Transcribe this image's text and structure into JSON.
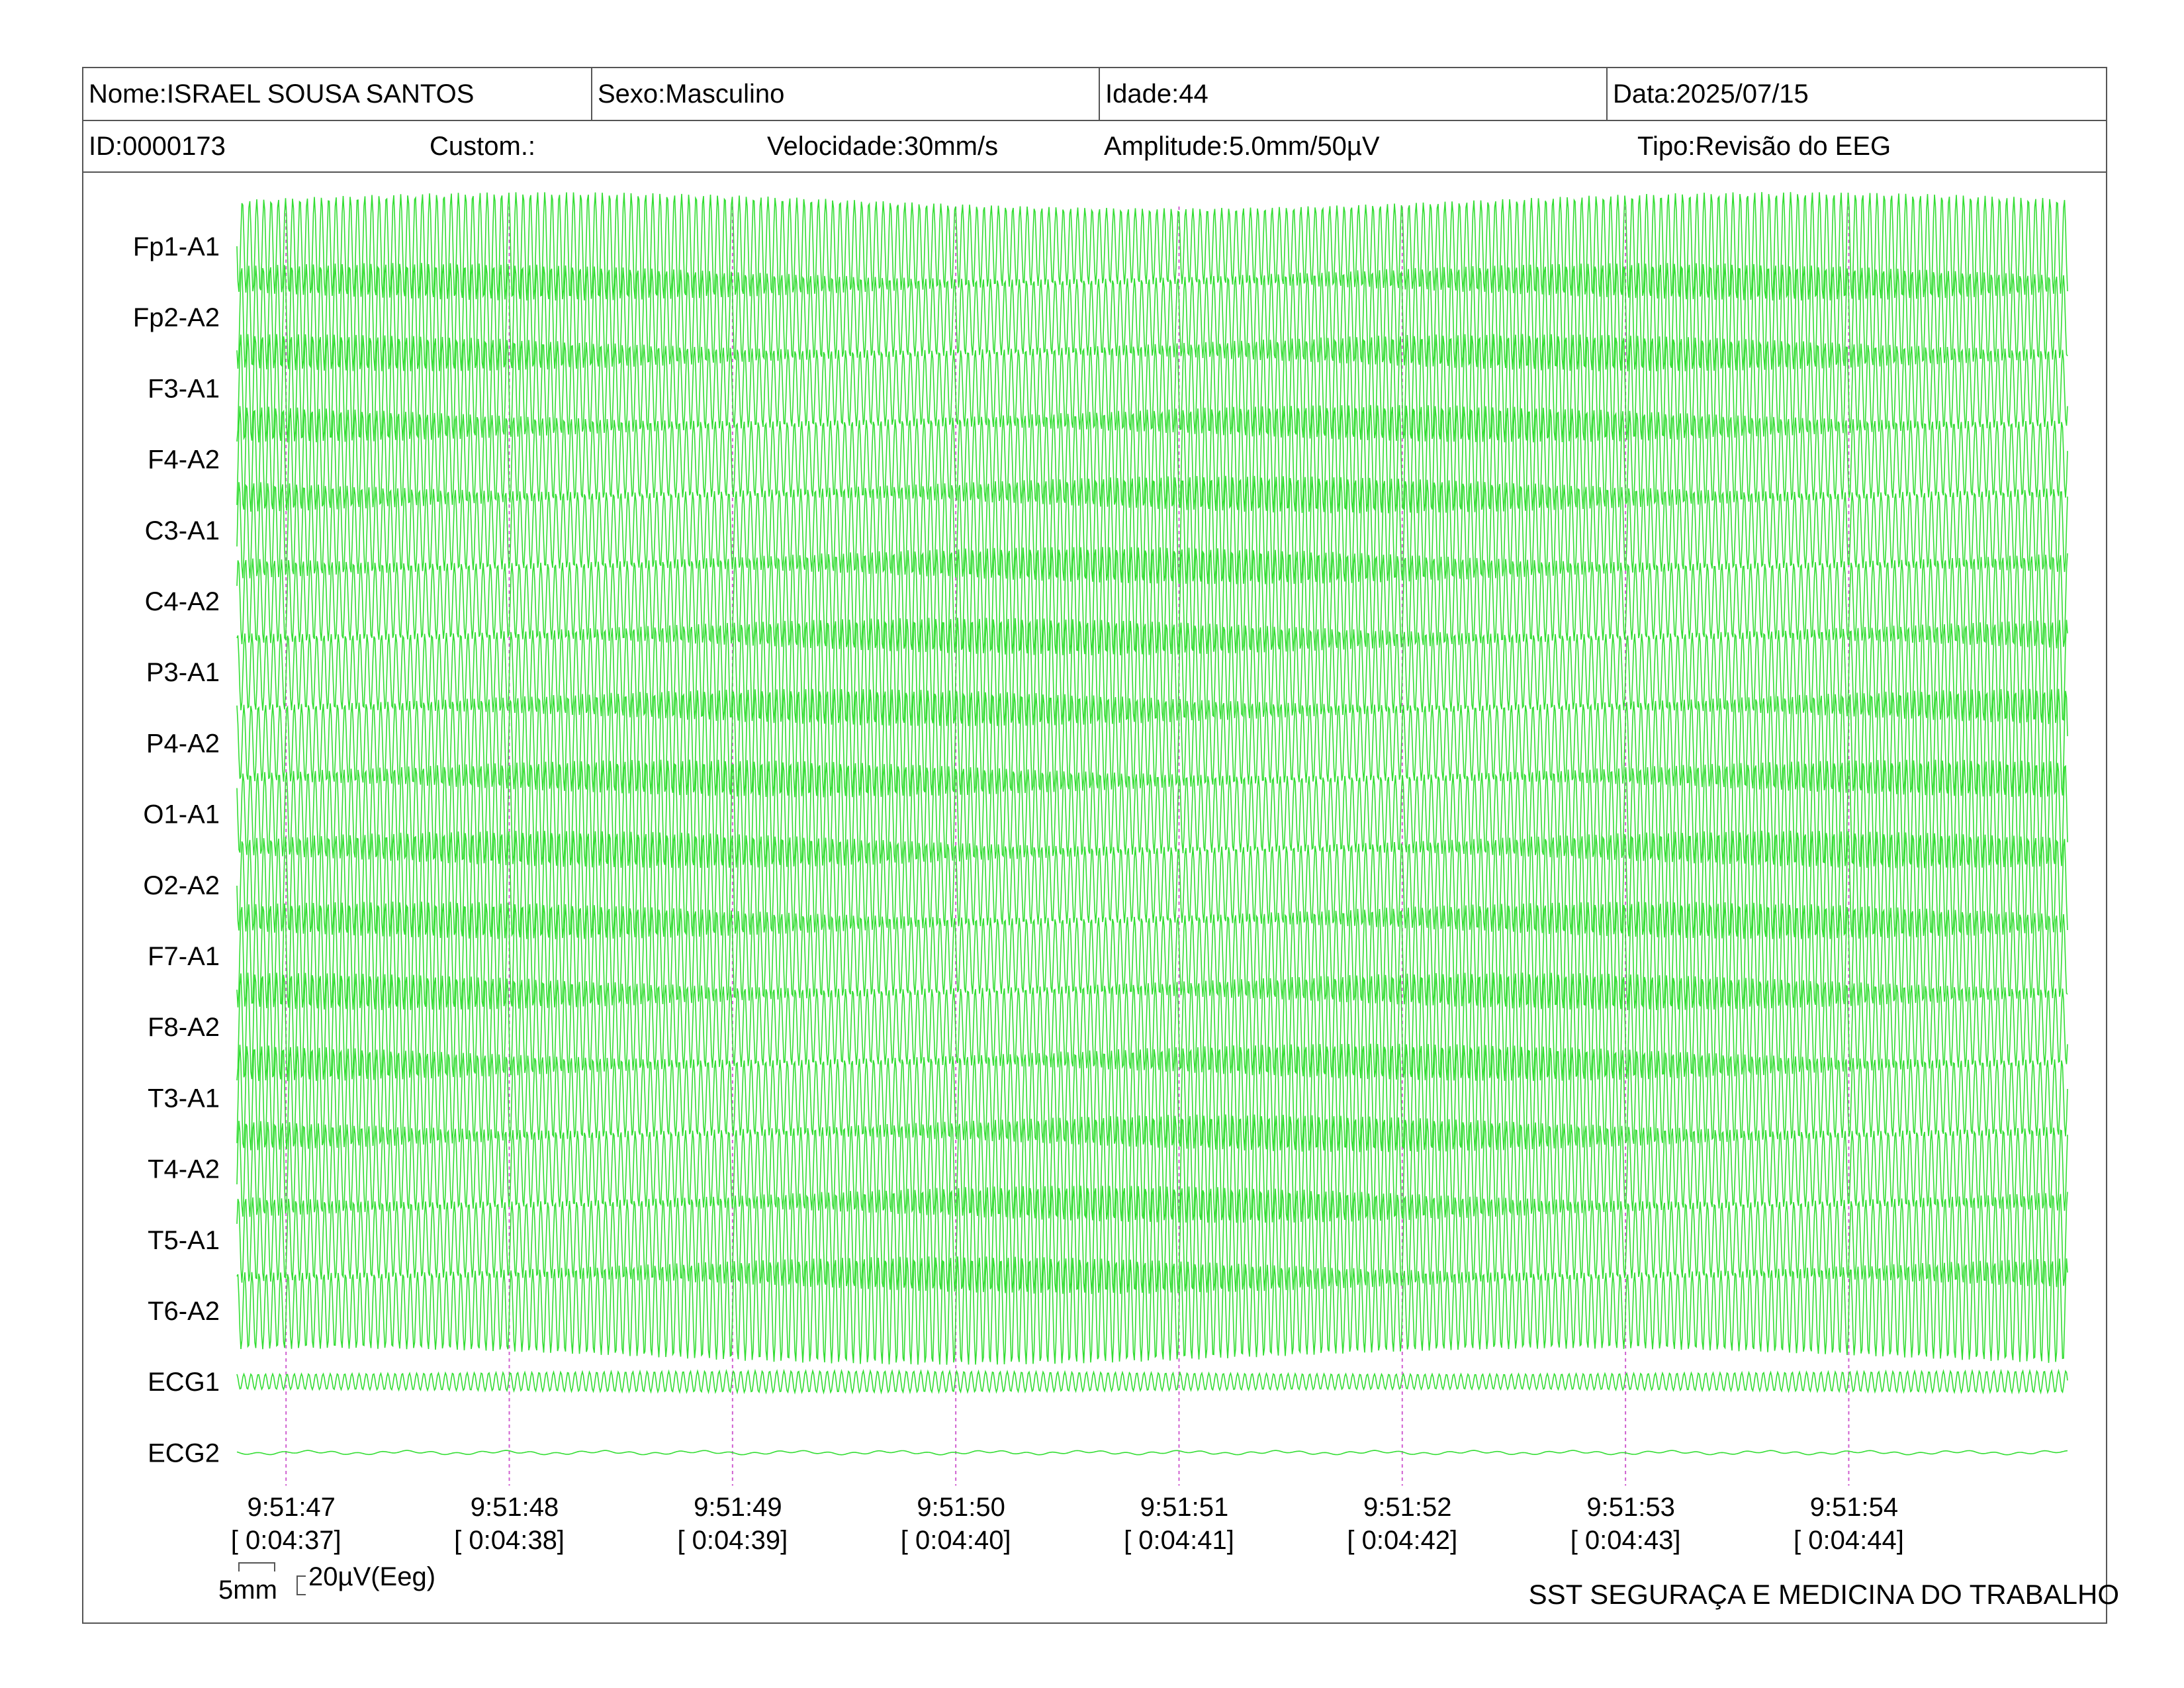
{
  "header": {
    "nome": "Nome:ISRAEL SOUSA SANTOS",
    "sexo": "Sexo:Masculino",
    "idade": "Idade:44",
    "data": "Data:2025/07/15",
    "id": "ID:0000173",
    "custom": "Custom.:",
    "velocidade": "Velocidade:30mm/s",
    "amplitude": "Amplitude:5.0mm/50µV",
    "tipo": "Tipo:Revisão do EEG"
  },
  "scale": {
    "mm_label": "5mm",
    "uv_label": "20µV(Eeg)"
  },
  "footer": "SST SEGURAÇA E MEDICINA DO TRABALHO",
  "colors": {
    "trace": "#33dd33",
    "marker": "#d060d0",
    "border": "#555555"
  },
  "chart_data": {
    "type": "line",
    "title": "",
    "xlabel": "",
    "ylabel": "",
    "grid": false,
    "sweep_seconds": 8.2,
    "channels": [
      "Fp1-A1",
      "Fp2-A2",
      "F3-A1",
      "F4-A2",
      "C3-A1",
      "C4-A2",
      "P3-A1",
      "P4-A2",
      "O1-A1",
      "O2-A2",
      "F7-A1",
      "F8-A2",
      "T3-A1",
      "T4-A2",
      "T5-A1",
      "T6-A2",
      "ECG1",
      "ECG2"
    ],
    "time_markers": [
      {
        "clock": "9:51:47",
        "elapsed": "[ 0:04:37]",
        "t": 0.22
      },
      {
        "clock": "9:51:48",
        "elapsed": "[ 0:04:38]",
        "t": 1.22
      },
      {
        "clock": "9:51:49",
        "elapsed": "[ 0:04:39]",
        "t": 2.22
      },
      {
        "clock": "9:51:50",
        "elapsed": "[ 0:04:40]",
        "t": 3.22
      },
      {
        "clock": "9:51:51",
        "elapsed": "[ 0:04:41]",
        "t": 4.22
      },
      {
        "clock": "9:51:52",
        "elapsed": "[ 0:04:42]",
        "t": 5.22
      },
      {
        "clock": "9:51:53",
        "elapsed": "[ 0:04:43]",
        "t": 6.22
      },
      {
        "clock": "9:51:54",
        "elapsed": "[ 0:04:44]",
        "t": 7.22
      }
    ],
    "waveform": {
      "dominant_frequency_hz": 31,
      "eeg_amplitude_uv": 200,
      "ecg1_amplitude_uv": 40,
      "ecg2_amplitude_uv": 8
    }
  }
}
